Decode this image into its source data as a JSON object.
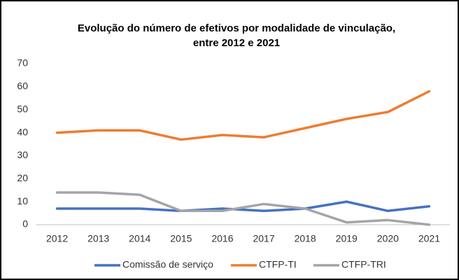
{
  "chart_data": {
    "type": "line",
    "title": [
      "Evolução  do número de efetivos por modalidade de vinculação,",
      "entre 2012 e 2021"
    ],
    "categories": [
      "2012",
      "2013",
      "2014",
      "2015",
      "2016",
      "2017",
      "2018",
      "2019",
      "2020",
      "2021"
    ],
    "series": [
      {
        "name": "Comissão de serviço",
        "color": "#4472c4",
        "values": [
          7,
          7,
          7,
          6,
          7,
          6,
          7,
          10,
          6,
          8
        ]
      },
      {
        "name": "CTFP-TI",
        "color": "#ed7d31",
        "values": [
          40,
          41,
          41,
          37,
          39,
          38,
          42,
          46,
          49,
          58
        ]
      },
      {
        "name": "CTFP-TRI",
        "color": "#a5a5a5",
        "values": [
          14,
          14,
          13,
          6,
          6,
          9,
          7,
          1,
          2,
          0
        ]
      }
    ],
    "ylim": [
      0,
      70
    ],
    "yticks": [
      0,
      10,
      20,
      30,
      40,
      50,
      60,
      70
    ],
    "grid": false,
    "legend": "bottom"
  }
}
